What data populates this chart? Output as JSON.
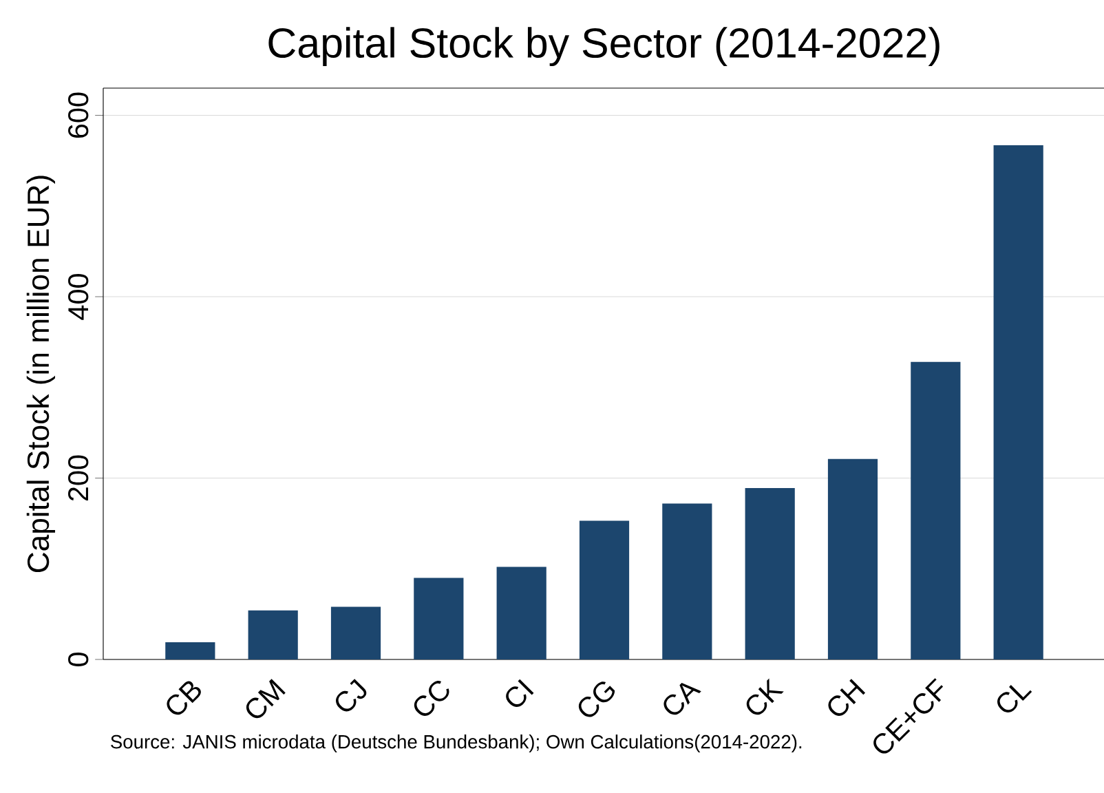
{
  "chart_data": {
    "type": "bar",
    "title": "Capital Stock by Sector (2014-2022)",
    "ylabel": "Capital Stock (in million EUR)",
    "categories": [
      "CB",
      "CM",
      "CJ",
      "CC",
      "CI",
      "CG",
      "CA",
      "CK",
      "CH",
      "CE+CF",
      "CL"
    ],
    "values": [
      19,
      54,
      58,
      90,
      102,
      153,
      172,
      189,
      221,
      328,
      567
    ],
    "color": "#1c466e",
    "ylim": [
      0,
      630
    ],
    "yticks": [
      0,
      200,
      400,
      600
    ],
    "grid": "y",
    "annotations": [
      "Source: JANIS microdata (Deutsche Bundesbank); Own Calculations(2014-2022)."
    ]
  }
}
